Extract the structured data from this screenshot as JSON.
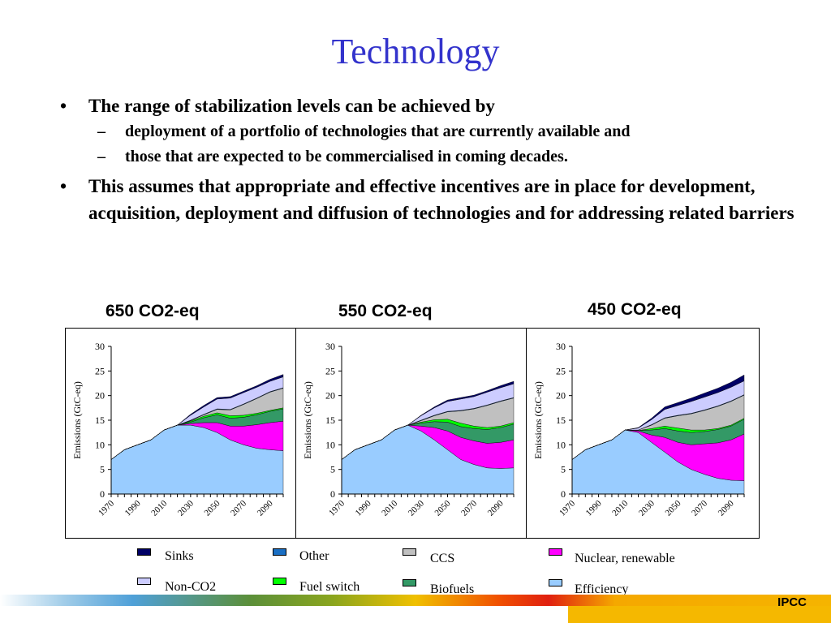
{
  "title": "Technology",
  "bullets": [
    {
      "text": "The range of stabilization levels can be achieved by",
      "sub": [
        "deployment of a portfolio of technologies that are currently available and",
        "those that are  expected to be commercialised in coming decades."
      ]
    },
    {
      "text": "This assumes that appropriate and effective incentives are in place for development, acquisition, deployment and diffusion of technologies and for addressing related barriers",
      "sub": []
    }
  ],
  "bullet_mark": "•",
  "sub_mark": "–",
  "colors": {
    "Sinks": "#000066",
    "Other": "#1a6fc4",
    "CCS": "#c0c0c0",
    "Nuclear, renewable": "#ff00ff",
    "Non-CO2": "#ccccff",
    "Fuel switch": "#00ff00",
    "Biofuels": "#339966",
    "Efficiency": "#99ccff",
    "title": "#3333cc",
    "footer": "#f5b800"
  },
  "chart_data": [
    {
      "type": "area",
      "title": "650 CO2-eq",
      "ylabel": "Emissions (GtC-eq)",
      "x": [
        1970,
        1980,
        1990,
        2000,
        2010,
        2020,
        2030,
        2040,
        2050,
        2060,
        2070,
        2080,
        2090,
        2100
      ],
      "xticks": [
        "1970",
        "1990",
        "2010",
        "2030",
        "2050",
        "2070",
        "2090"
      ],
      "ylim": [
        0,
        30
      ],
      "yticks": [
        0,
        5,
        10,
        15,
        20,
        25,
        30
      ],
      "series": [
        {
          "name": "Efficiency",
          "values": [
            7,
            9,
            10,
            11,
            13,
            14,
            14,
            13.5,
            12.5,
            11,
            10,
            9.3,
            9,
            8.8
          ]
        },
        {
          "name": "Nuclear, renewable",
          "values": [
            0,
            0,
            0,
            0,
            0,
            0,
            0.3,
            1,
            2,
            2.8,
            3.8,
            4.8,
            5.5,
            6
          ]
        },
        {
          "name": "Biofuels",
          "values": [
            0,
            0,
            0,
            0,
            0,
            0,
            0.3,
            1,
            1.6,
            1.6,
            1.8,
            2,
            2.3,
            2.5
          ]
        },
        {
          "name": "Fuel switch",
          "values": [
            0,
            0,
            0,
            0,
            0,
            0,
            0.2,
            0.3,
            0.4,
            0.5,
            0.4,
            0.3,
            0.2,
            0.2
          ]
        },
        {
          "name": "CCS",
          "values": [
            0,
            0,
            0,
            0,
            0,
            0,
            0.1,
            0.3,
            0.7,
            1.2,
            2.2,
            3,
            3.7,
            4
          ]
        },
        {
          "name": "Other",
          "values": [
            0,
            0,
            0,
            0,
            0,
            0,
            0.1,
            0.1,
            0.1,
            0.1,
            0.1,
            0.1,
            0.1,
            0.1
          ]
        },
        {
          "name": "Non-CO2",
          "values": [
            0,
            0,
            0,
            0,
            0,
            0,
            1,
            1.5,
            2,
            2.3,
            2.3,
            2.2,
            2.1,
            2.2
          ]
        },
        {
          "name": "Sinks",
          "values": [
            0,
            0,
            0,
            0,
            0,
            0,
            0.2,
            0.3,
            0.3,
            0.3,
            0.3,
            0.3,
            0.4,
            0.5
          ]
        }
      ]
    },
    {
      "type": "area",
      "title": "550 CO2-eq",
      "ylabel": "Emissions (GtC-eq)",
      "x": [
        1970,
        1980,
        1990,
        2000,
        2010,
        2020,
        2030,
        2040,
        2050,
        2060,
        2070,
        2080,
        2090,
        2100
      ],
      "xticks": [
        "1970",
        "1990",
        "2010",
        "2030",
        "2050",
        "2070",
        "2090"
      ],
      "ylim": [
        0,
        30
      ],
      "yticks": [
        0,
        5,
        10,
        15,
        20,
        25,
        30
      ],
      "series": [
        {
          "name": "Efficiency",
          "values": [
            7,
            9,
            10,
            11,
            13,
            14,
            12.8,
            11,
            9,
            7,
            6,
            5.3,
            5.2,
            5.3
          ]
        },
        {
          "name": "Nuclear, renewable",
          "values": [
            0,
            0,
            0,
            0,
            0,
            0,
            1,
            2.5,
            3.8,
            4.5,
            4.8,
            5,
            5.3,
            5.7
          ]
        },
        {
          "name": "Biofuels",
          "values": [
            0,
            0,
            0,
            0,
            0,
            0,
            0.6,
            1.2,
            1.8,
            2.2,
            2.5,
            2.8,
            3,
            3.2
          ]
        },
        {
          "name": "Fuel switch",
          "values": [
            0,
            0,
            0,
            0,
            0,
            0,
            0.2,
            0.4,
            0.6,
            0.7,
            0.5,
            0.4,
            0.3,
            0.3
          ]
        },
        {
          "name": "CCS",
          "values": [
            0,
            0,
            0,
            0,
            0,
            0,
            0.3,
            0.8,
            1.5,
            2.5,
            3.5,
            4.5,
            5,
            5
          ]
        },
        {
          "name": "Other",
          "values": [
            0,
            0,
            0,
            0,
            0,
            0,
            0.1,
            0.1,
            0.1,
            0.1,
            0.1,
            0.1,
            0.1,
            0.1
          ]
        },
        {
          "name": "Non-CO2",
          "values": [
            0,
            0,
            0,
            0,
            0,
            0,
            0.9,
            1.5,
            2,
            2.3,
            2.4,
            2.6,
            2.7,
            2.8
          ]
        },
        {
          "name": "Sinks",
          "values": [
            0,
            0,
            0,
            0,
            0,
            0,
            0.1,
            0.2,
            0.3,
            0.3,
            0.3,
            0.3,
            0.4,
            0.5
          ]
        }
      ]
    },
    {
      "type": "area",
      "title": "450 CO2-eq",
      "ylabel": "Emissions (GtC-eq)",
      "x": [
        1970,
        1980,
        1990,
        2000,
        2010,
        2020,
        2030,
        2040,
        2050,
        2060,
        2070,
        2080,
        2090,
        2100
      ],
      "xticks": [
        "1970",
        "1990",
        "2010",
        "2030",
        "2050",
        "2070",
        "2090"
      ],
      "ylim": [
        0,
        30
      ],
      "yticks": [
        0,
        5,
        10,
        15,
        20,
        25,
        30
      ],
      "series": [
        {
          "name": "Efficiency",
          "values": [
            7,
            9,
            10,
            11,
            13,
            12.5,
            10.5,
            8.5,
            6.5,
            5,
            4,
            3.2,
            2.8,
            2.7
          ]
        },
        {
          "name": "Nuclear, renewable",
          "values": [
            0,
            0,
            0,
            0,
            0,
            0.3,
            1.5,
            3,
            4,
            5,
            6.2,
            7.2,
            8.2,
            9.5
          ]
        },
        {
          "name": "Biofuels",
          "values": [
            0,
            0,
            0,
            0,
            0,
            0.1,
            1,
            1.8,
            2.3,
            2.5,
            2.5,
            2.7,
            2.8,
            3
          ]
        },
        {
          "name": "Fuel switch",
          "values": [
            0,
            0,
            0,
            0,
            0,
            0,
            0.3,
            0.5,
            0.6,
            0.5,
            0.3,
            0.2,
            0.2,
            0.2
          ]
        },
        {
          "name": "CCS",
          "values": [
            0,
            0,
            0,
            0,
            0,
            0.1,
            0.7,
            1.6,
            2.5,
            3.3,
            4,
            4.5,
            4.8,
            4.7
          ]
        },
        {
          "name": "Other",
          "values": [
            0,
            0,
            0,
            0,
            0,
            0,
            0.1,
            0.1,
            0.1,
            0.1,
            0.1,
            0.1,
            0.1,
            0.1
          ]
        },
        {
          "name": "Non-CO2",
          "values": [
            0,
            0,
            0,
            0,
            0,
            0.4,
            1,
            1.7,
            2,
            2.4,
            2.6,
            2.7,
            2.8,
            2.8
          ]
        },
        {
          "name": "Sinks",
          "values": [
            0,
            0,
            0,
            0,
            0,
            0.1,
            0.3,
            0.5,
            0.6,
            0.7,
            0.8,
            0.9,
            1,
            1.2
          ]
        }
      ]
    }
  ],
  "legend": [
    {
      "label": "Sinks",
      "color": "#000066"
    },
    {
      "label": "Other",
      "color": "#1a6fc4"
    },
    {
      "label": "CCS",
      "color": "#c0c0c0"
    },
    {
      "label": "Nuclear, renewable",
      "color": "#ff00ff"
    },
    {
      "label": "Non-CO2",
      "color": "#ccccff"
    },
    {
      "label": "Fuel switch",
      "color": "#00ff00"
    },
    {
      "label": "Biofuels",
      "color": "#339966"
    },
    {
      "label": "Efficiency",
      "color": "#99ccff"
    }
  ],
  "footer": {
    "logo_text": "IPCC"
  }
}
